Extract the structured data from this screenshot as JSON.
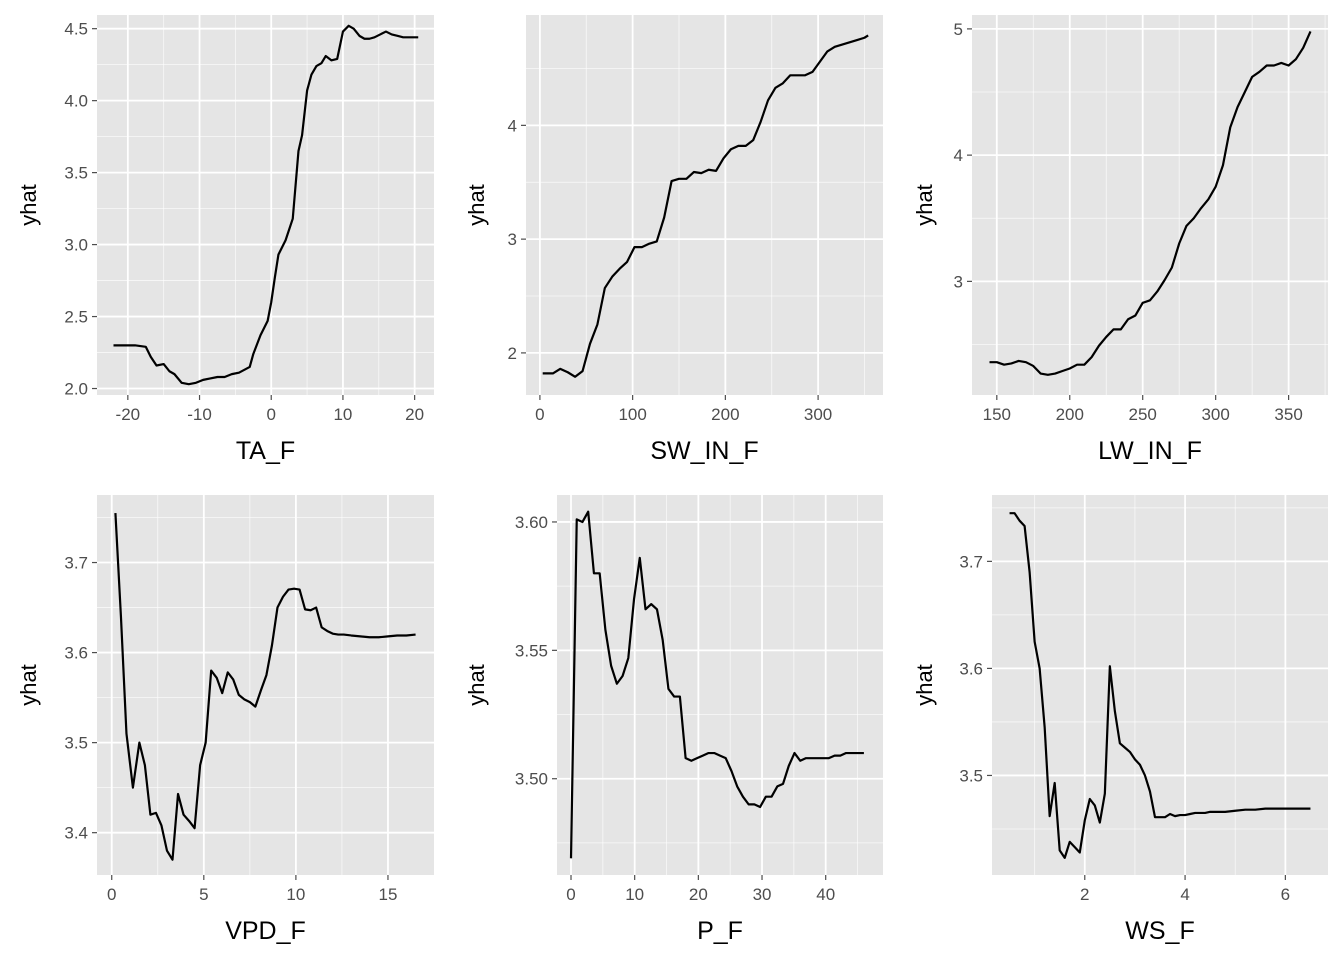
{
  "colors": {
    "panel_bg": "#e5e5e5",
    "grid_major": "#ffffff",
    "line": "#000000",
    "tick": "#4d4d4d"
  },
  "chart_data": [
    {
      "type": "line",
      "xlabel": "TA_F",
      "ylabel": "yhat",
      "xlim": [
        -24.3,
        22.7
      ],
      "ylim": [
        1.955,
        4.595
      ],
      "xticks": [
        -20,
        -10,
        0,
        10,
        20
      ],
      "xtick_labels": [
        "-20",
        "-10",
        "0",
        "10",
        "20"
      ],
      "yticks": [
        2.0,
        2.5,
        3.0,
        3.5,
        4.0,
        4.5
      ],
      "ytick_labels": [
        "2.0",
        "2.5",
        "3.0",
        "3.5",
        "4.0",
        "4.5"
      ],
      "grid": true,
      "x": [
        -22,
        -19,
        -17.5,
        -16.8,
        -16,
        -15,
        -14.2,
        -13.5,
        -12.5,
        -11.5,
        -10.5,
        -9.5,
        -8.5,
        -7.5,
        -6.5,
        -5.5,
        -4.5,
        -3,
        -2.5,
        -1.5,
        -0.5,
        0,
        0.5,
        1,
        2,
        3,
        3.8,
        4.3,
        5,
        5.6,
        6.3,
        7,
        7.6,
        8.4,
        9.2,
        10,
        10.8,
        11.5,
        12.3,
        13,
        13.7,
        14.4,
        15.2,
        16,
        16.8,
        17.6,
        18.4,
        19.2,
        20,
        20.5
      ],
      "y": [
        2.3,
        2.3,
        2.29,
        2.22,
        2.16,
        2.17,
        2.12,
        2.1,
        2.04,
        2.03,
        2.04,
        2.06,
        2.07,
        2.08,
        2.08,
        2.1,
        2.11,
        2.15,
        2.24,
        2.37,
        2.47,
        2.6,
        2.77,
        2.93,
        3.03,
        3.18,
        3.65,
        3.76,
        4.07,
        4.18,
        4.24,
        4.26,
        4.31,
        4.28,
        4.29,
        4.48,
        4.52,
        4.5,
        4.45,
        4.43,
        4.43,
        4.44,
        4.46,
        4.48,
        4.46,
        4.45,
        4.44,
        4.44,
        4.44,
        4.44
      ]
    },
    {
      "type": "line",
      "xlabel": "SW_IN_F",
      "ylabel": "yhat",
      "xlim": [
        -15,
        370
      ],
      "ylim": [
        1.63,
        4.97
      ],
      "xticks": [
        0,
        100,
        200,
        300
      ],
      "xtick_labels": [
        "0",
        "100",
        "200",
        "300"
      ],
      "yticks": [
        2,
        3,
        4
      ],
      "ytick_labels": [
        "2",
        "3",
        "4"
      ],
      "grid": true,
      "x": [
        3,
        14,
        22,
        30,
        38,
        46,
        54,
        62,
        70,
        78,
        86,
        94,
        102,
        110,
        118,
        126,
        134,
        142,
        150,
        158,
        166,
        174,
        182,
        190,
        198,
        206,
        214,
        222,
        230,
        238,
        246,
        254,
        262,
        270,
        278,
        286,
        294,
        302,
        310,
        318,
        326,
        334,
        342,
        350,
        354
      ],
      "y": [
        1.82,
        1.82,
        1.86,
        1.83,
        1.79,
        1.84,
        2.08,
        2.25,
        2.57,
        2.67,
        2.74,
        2.8,
        2.93,
        2.93,
        2.96,
        2.98,
        3.19,
        3.51,
        3.53,
        3.53,
        3.59,
        3.58,
        3.61,
        3.6,
        3.71,
        3.79,
        3.82,
        3.82,
        3.87,
        4.03,
        4.22,
        4.33,
        4.37,
        4.44,
        4.44,
        4.44,
        4.47,
        4.56,
        4.65,
        4.69,
        4.71,
        4.73,
        4.75,
        4.77,
        4.79
      ]
    },
    {
      "type": "line",
      "xlabel": "LW_IN_F",
      "ylabel": "yhat",
      "xlim": [
        133,
        377
      ],
      "ylim": [
        2.1,
        5.11
      ],
      "xticks": [
        150,
        200,
        250,
        300,
        350
      ],
      "xtick_labels": [
        "150",
        "200",
        "250",
        "300",
        "350"
      ],
      "yticks": [
        3,
        4,
        5
      ],
      "ytick_labels": [
        "3",
        "4",
        "5"
      ],
      "grid": true,
      "x": [
        145,
        150,
        155,
        160,
        165,
        170,
        175,
        180,
        185,
        190,
        195,
        200,
        205,
        210,
        215,
        220,
        225,
        230,
        235,
        240,
        245,
        250,
        255,
        260,
        265,
        270,
        275,
        280,
        285,
        290,
        295,
        300,
        305,
        310,
        315,
        320,
        325,
        330,
        335,
        340,
        345,
        350,
        355,
        360,
        365
      ],
      "y": [
        2.36,
        2.36,
        2.34,
        2.35,
        2.37,
        2.36,
        2.33,
        2.27,
        2.26,
        2.27,
        2.29,
        2.31,
        2.34,
        2.34,
        2.4,
        2.49,
        2.56,
        2.62,
        2.62,
        2.7,
        2.73,
        2.83,
        2.85,
        2.92,
        3.01,
        3.11,
        3.3,
        3.44,
        3.5,
        3.58,
        3.65,
        3.75,
        3.92,
        4.22,
        4.38,
        4.5,
        4.62,
        4.66,
        4.71,
        4.71,
        4.73,
        4.71,
        4.76,
        4.85,
        4.98
      ]
    },
    {
      "type": "line",
      "xlabel": "VPD_F",
      "ylabel": "yhat",
      "xlim": [
        -0.8,
        17.5
      ],
      "ylim": [
        3.353,
        3.775
      ],
      "xticks": [
        0,
        5,
        10,
        15
      ],
      "xtick_labels": [
        "0",
        "5",
        "10",
        "15"
      ],
      "yticks": [
        3.4,
        3.5,
        3.6,
        3.7
      ],
      "ytick_labels": [
        "3.4",
        "3.5",
        "3.6",
        "3.7"
      ],
      "grid": true,
      "x": [
        0.2,
        0.5,
        0.8,
        1.15,
        1.5,
        1.8,
        2.1,
        2.4,
        2.7,
        3.0,
        3.3,
        3.6,
        3.9,
        4.2,
        4.5,
        4.8,
        5.1,
        5.4,
        5.7,
        6.0,
        6.3,
        6.6,
        6.9,
        7.2,
        7.5,
        7.8,
        8.1,
        8.4,
        8.7,
        9.0,
        9.3,
        9.6,
        9.9,
        10.2,
        10.5,
        10.8,
        11.1,
        11.4,
        11.7,
        12.0,
        12.3,
        12.6,
        13.0,
        13.5,
        14.0,
        14.5,
        15.0,
        15.5,
        16.0,
        16.5
      ],
      "y": [
        3.755,
        3.64,
        3.51,
        3.45,
        3.5,
        3.475,
        3.42,
        3.422,
        3.408,
        3.38,
        3.37,
        3.443,
        3.42,
        3.413,
        3.405,
        3.475,
        3.5,
        3.58,
        3.572,
        3.555,
        3.578,
        3.57,
        3.553,
        3.548,
        3.545,
        3.54,
        3.558,
        3.575,
        3.608,
        3.65,
        3.662,
        3.67,
        3.671,
        3.67,
        3.648,
        3.647,
        3.65,
        3.628,
        3.624,
        3.621,
        3.62,
        3.62,
        3.619,
        3.618,
        3.617,
        3.617,
        3.618,
        3.619,
        3.619,
        3.62
      ]
    },
    {
      "type": "line",
      "xlabel": "P_F",
      "ylabel": "yhat",
      "xlim": [
        -2.2,
        49
      ],
      "ylim": [
        3.4625,
        3.6105
      ],
      "xticks": [
        0,
        10,
        20,
        30,
        40
      ],
      "xtick_labels": [
        "0",
        "10",
        "20",
        "30",
        "40"
      ],
      "yticks": [
        3.5,
        3.55,
        3.6
      ],
      "ytick_labels": [
        "3.50",
        "3.55",
        "3.60"
      ],
      "grid": true,
      "x": [
        0,
        0.9,
        1.8,
        2.7,
        3.6,
        4.5,
        5.4,
        6.3,
        7.2,
        8.1,
        9.0,
        9.9,
        10.8,
        11.7,
        12.6,
        13.5,
        14.4,
        15.3,
        16.2,
        17.1,
        18.0,
        18.9,
        19.8,
        20.7,
        21.6,
        22.5,
        23.4,
        24.3,
        25.2,
        26.1,
        27.0,
        27.9,
        28.8,
        29.7,
        30.6,
        31.5,
        32.4,
        33.3,
        34.2,
        35.1,
        36.0,
        36.9,
        37.8,
        38.7,
        39.6,
        40.5,
        41.4,
        42.3,
        43.2,
        44.1,
        45.0,
        46.0
      ],
      "y": [
        3.469,
        3.601,
        3.6,
        3.604,
        3.58,
        3.58,
        3.558,
        3.544,
        3.537,
        3.54,
        3.547,
        3.57,
        3.586,
        3.566,
        3.568,
        3.566,
        3.554,
        3.535,
        3.532,
        3.532,
        3.508,
        3.507,
        3.508,
        3.509,
        3.51,
        3.51,
        3.509,
        3.508,
        3.503,
        3.497,
        3.493,
        3.49,
        3.49,
        3.489,
        3.493,
        3.493,
        3.497,
        3.498,
        3.505,
        3.51,
        3.507,
        3.508,
        3.508,
        3.508,
        3.508,
        3.508,
        3.509,
        3.509,
        3.51,
        3.51,
        3.51,
        3.51
      ]
    },
    {
      "type": "line",
      "xlabel": "WS_F",
      "ylabel": "yhat",
      "xlim": [
        0.15,
        6.85
      ],
      "ylim": [
        3.407,
        3.762
      ],
      "xticks": [
        2,
        4,
        6
      ],
      "xtick_labels": [
        "2",
        "4",
        "6"
      ],
      "yticks": [
        3.5,
        3.6,
        3.7
      ],
      "ytick_labels": [
        "3.5",
        "3.6",
        "3.7"
      ],
      "grid": true,
      "x": [
        0.5,
        0.6,
        0.7,
        0.8,
        0.9,
        1.0,
        1.1,
        1.2,
        1.3,
        1.4,
        1.5,
        1.6,
        1.7,
        1.8,
        1.9,
        2.0,
        2.1,
        2.2,
        2.3,
        2.4,
        2.5,
        2.6,
        2.7,
        2.8,
        2.9,
        3.0,
        3.1,
        3.2,
        3.3,
        3.4,
        3.5,
        3.6,
        3.7,
        3.8,
        3.9,
        4.0,
        4.1,
        4.2,
        4.3,
        4.4,
        4.5,
        4.6,
        4.8,
        5.0,
        5.2,
        5.4,
        5.6,
        5.8,
        6.0,
        6.2,
        6.4,
        6.5
      ],
      "y": [
        3.745,
        3.745,
        3.738,
        3.733,
        3.69,
        3.625,
        3.6,
        3.545,
        3.462,
        3.493,
        3.43,
        3.423,
        3.438,
        3.433,
        3.428,
        3.458,
        3.478,
        3.472,
        3.456,
        3.483,
        3.602,
        3.56,
        3.53,
        3.526,
        3.522,
        3.515,
        3.51,
        3.5,
        3.485,
        3.461,
        3.461,
        3.461,
        3.464,
        3.462,
        3.463,
        3.463,
        3.464,
        3.465,
        3.465,
        3.465,
        3.466,
        3.466,
        3.466,
        3.467,
        3.468,
        3.468,
        3.469,
        3.469,
        3.469,
        3.469,
        3.469,
        3.469
      ]
    }
  ]
}
